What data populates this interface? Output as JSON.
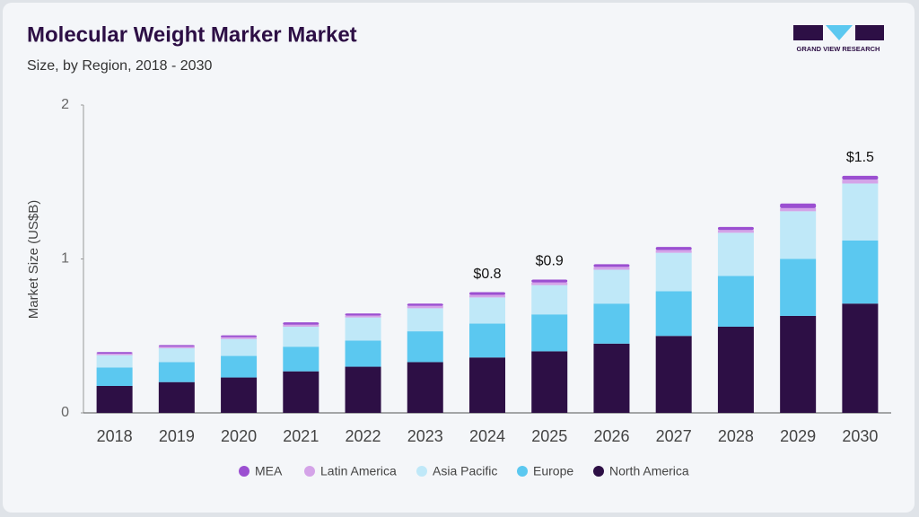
{
  "chart_data": {
    "type": "stacked-bar",
    "title": "Molecular Weight Marker Market",
    "subtitle": "Size, by Region, 2018 - 2030",
    "ylabel": "Market Size (US$B)",
    "logo_text": "GRAND VIEW RESEARCH",
    "categories": [
      "2018",
      "2019",
      "2020",
      "2021",
      "2022",
      "2023",
      "2024",
      "2025",
      "2026",
      "2027",
      "2028",
      "2029",
      "2030"
    ],
    "series": [
      {
        "name": "MEA",
        "color": "#9b4fd1",
        "values": [
          0.01,
          0.01,
          0.012,
          0.015,
          0.013,
          0.015,
          0.017,
          0.018,
          0.018,
          0.02,
          0.02,
          0.03,
          0.025
        ]
      },
      {
        "name": "Latin America",
        "color": "#d4a3e8",
        "values": [
          0.01,
          0.01,
          0.012,
          0.013,
          0.013,
          0.015,
          0.017,
          0.018,
          0.018,
          0.018,
          0.018,
          0.02,
          0.025
        ]
      },
      {
        "name": "Asia Pacific",
        "color": "#bfe8f8",
        "values": [
          0.08,
          0.09,
          0.11,
          0.13,
          0.15,
          0.15,
          0.17,
          0.19,
          0.22,
          0.25,
          0.28,
          0.31,
          0.37
        ]
      },
      {
        "name": "Europe",
        "color": "#5bc8f0",
        "values": [
          0.12,
          0.13,
          0.14,
          0.16,
          0.17,
          0.2,
          0.22,
          0.24,
          0.26,
          0.29,
          0.33,
          0.37,
          0.41
        ]
      },
      {
        "name": "North America",
        "color": "#2d0f45",
        "values": [
          0.175,
          0.2,
          0.23,
          0.27,
          0.3,
          0.33,
          0.36,
          0.4,
          0.45,
          0.5,
          0.56,
          0.63,
          0.71
        ]
      }
    ],
    "total_labels": [
      null,
      null,
      null,
      null,
      null,
      null,
      "$0.8",
      "$0.9",
      null,
      null,
      null,
      null,
      "$1.5"
    ],
    "ylim": [
      0,
      2
    ],
    "yticks": [
      0,
      1,
      2
    ],
    "grid": false
  }
}
